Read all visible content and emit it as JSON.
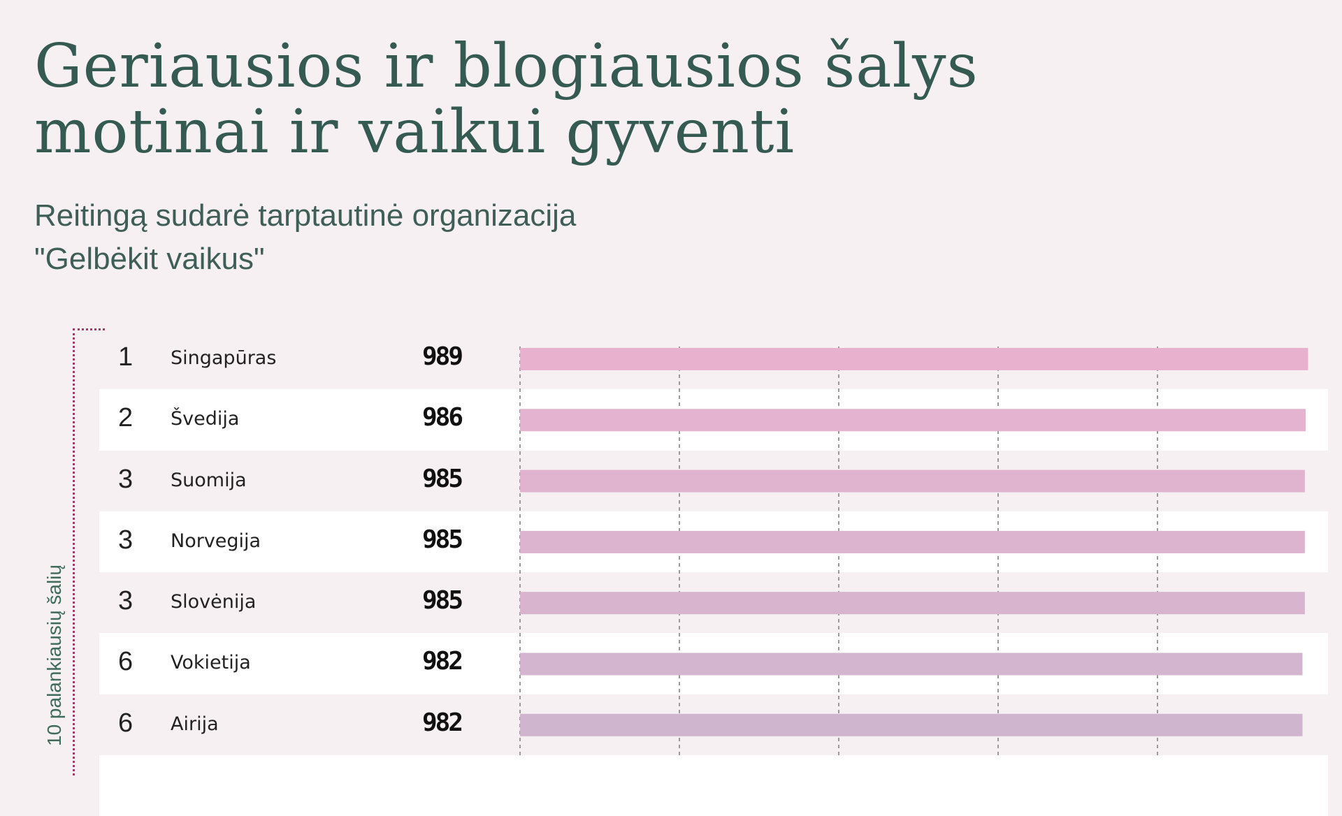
{
  "header": {
    "title_line1": "Geriausios ir blogiausios šalys",
    "title_line2": "motinai ir vaikui gyventi",
    "subtitle_line1": "Reitingą sudarė tarptautinė organizacija",
    "subtitle_line2": "\"Gelbėkit vaikus\""
  },
  "group_label": "10 palankiausių šalių",
  "colors": {
    "title": "#345a52",
    "bar_top": "#e8b2cf",
    "bar_bottom": "#d0b5cf",
    "bracket": "#a23c6c",
    "row_alt": "#ffffff",
    "background": "#f6f0f2"
  },
  "chart_data": {
    "type": "bar",
    "orientation": "horizontal",
    "categories": [
      "Singapūras",
      "Švedija",
      "Suomija",
      "Norvegija",
      "Slovėnija",
      "Vokietija",
      "Airija"
    ],
    "ranks": [
      "1",
      "2",
      "3",
      "3",
      "3",
      "6",
      "6"
    ],
    "values": [
      989,
      986,
      985,
      985,
      985,
      982,
      982
    ],
    "value_labels": [
      "989",
      "986",
      "985",
      "985",
      "985",
      "982",
      "982"
    ],
    "xlim": [
      0,
      1000
    ],
    "grid": true,
    "gridlines_at": [
      200,
      400,
      600,
      800
    ]
  }
}
